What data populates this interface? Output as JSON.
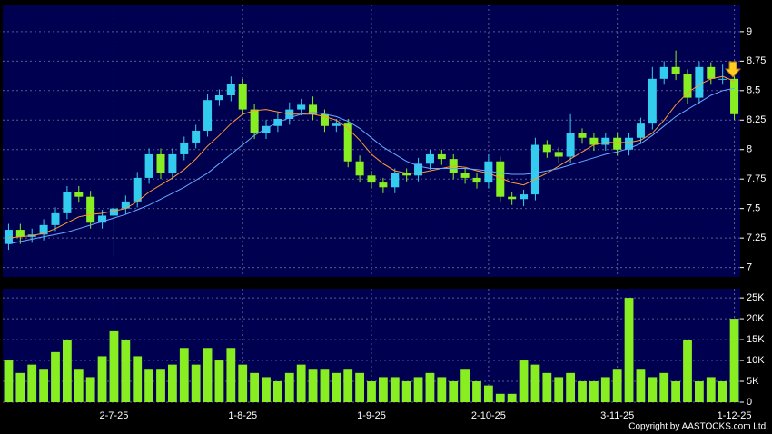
{
  "chart_data": [
    {
      "type": "candlestick",
      "categories": [
        null,
        null,
        null,
        null,
        null,
        null,
        null,
        null,
        null,
        "2-7-25",
        null,
        null,
        null,
        null,
        null,
        null,
        null,
        null,
        null,
        null,
        "1-8-25",
        null,
        null,
        null,
        null,
        null,
        null,
        null,
        null,
        null,
        null,
        "1-9-25",
        null,
        null,
        null,
        null,
        null,
        null,
        null,
        null,
        null,
        "2-10-25",
        null,
        null,
        null,
        null,
        null,
        null,
        null,
        null,
        null,
        null,
        "3-11-25",
        null,
        null,
        null,
        null,
        null,
        null,
        null,
        null,
        null,
        "1-12-25"
      ],
      "open": [
        7.2,
        7.32,
        7.26,
        7.28,
        7.36,
        7.46,
        7.64,
        7.6,
        7.38,
        7.44,
        7.5,
        7.56,
        7.76,
        7.96,
        7.8,
        7.96,
        8.06,
        8.16,
        8.42,
        8.46,
        8.56,
        8.34,
        8.14,
        8.2,
        8.26,
        8.34,
        8.38,
        8.3,
        8.2,
        8.22,
        7.9,
        7.78,
        7.72,
        7.68,
        7.8,
        7.78,
        7.88,
        7.96,
        7.92,
        7.8,
        7.76,
        7.72,
        7.9,
        7.6,
        7.58,
        7.62,
        8.04,
        7.98,
        7.94,
        8.14,
        8.1,
        8.04,
        8.1,
        8.0,
        8.1,
        8.22,
        8.6,
        8.7,
        8.64,
        8.44,
        8.7,
        8.6,
        8.6
      ],
      "high": [
        7.37,
        7.37,
        7.33,
        7.41,
        7.51,
        7.69,
        7.69,
        7.65,
        7.49,
        7.55,
        7.61,
        7.81,
        8.01,
        8.01,
        8.01,
        8.11,
        8.21,
        8.47,
        8.51,
        8.62,
        8.6,
        8.39,
        8.25,
        8.31,
        8.4,
        8.43,
        8.45,
        8.34,
        8.26,
        8.26,
        7.95,
        7.82,
        7.76,
        7.84,
        7.84,
        7.93,
        8.0,
        8.0,
        7.96,
        7.84,
        7.8,
        7.96,
        7.94,
        7.64,
        7.66,
        8.1,
        8.08,
        8.02,
        8.3,
        8.18,
        8.14,
        8.14,
        8.14,
        8.14,
        8.27,
        8.7,
        8.75,
        8.84,
        8.68,
        8.75,
        8.74,
        8.72,
        8.64
      ],
      "low": [
        7.15,
        7.2,
        7.21,
        7.23,
        7.31,
        7.41,
        7.55,
        7.33,
        7.33,
        7.1,
        7.45,
        7.51,
        7.71,
        7.75,
        7.75,
        7.91,
        8.01,
        8.11,
        8.37,
        8.41,
        8.29,
        8.09,
        8.09,
        8.15,
        8.21,
        8.29,
        8.25,
        8.15,
        8.15,
        7.85,
        7.72,
        7.67,
        7.63,
        7.63,
        7.73,
        7.73,
        7.83,
        7.87,
        7.75,
        7.71,
        7.67,
        7.67,
        7.55,
        7.53,
        7.52,
        7.57,
        7.93,
        7.89,
        7.89,
        8.05,
        7.99,
        7.99,
        7.95,
        7.95,
        8.05,
        8.17,
        8.55,
        8.59,
        8.39,
        8.39,
        8.55,
        8.55,
        8.25
      ],
      "close": [
        7.32,
        7.26,
        7.28,
        7.36,
        7.46,
        7.64,
        7.6,
        7.38,
        7.44,
        7.5,
        7.56,
        7.76,
        7.96,
        7.8,
        7.96,
        8.06,
        8.16,
        8.42,
        8.46,
        8.56,
        8.34,
        8.14,
        8.2,
        8.26,
        8.34,
        8.38,
        8.3,
        8.2,
        8.22,
        7.9,
        7.78,
        7.72,
        7.68,
        7.8,
        7.78,
        7.88,
        7.96,
        7.92,
        7.8,
        7.76,
        7.72,
        7.9,
        7.6,
        7.58,
        7.62,
        8.04,
        7.98,
        7.94,
        8.14,
        8.1,
        8.04,
        8.1,
        8.0,
        8.1,
        8.22,
        8.6,
        8.7,
        8.64,
        8.44,
        8.7,
        8.6,
        8.6,
        8.3
      ],
      "up_color": "#33ccee",
      "down_color": "#88ee22",
      "series": [
        {
          "color": "#ff9933",
          "values": [
            7.25,
            7.26,
            7.27,
            7.29,
            7.33,
            7.38,
            7.43,
            7.45,
            7.46,
            7.48,
            7.5,
            7.56,
            7.64,
            7.7,
            7.76,
            7.83,
            7.92,
            8.03,
            8.12,
            8.22,
            8.3,
            8.33,
            8.34,
            8.32,
            8.3,
            8.3,
            8.3,
            8.28,
            8.25,
            8.18,
            8.08,
            7.96,
            7.88,
            7.82,
            7.8,
            7.8,
            7.82,
            7.84,
            7.86,
            7.85,
            7.82,
            7.8,
            7.76,
            7.72,
            7.7,
            7.75,
            7.8,
            7.86,
            7.92,
            7.98,
            8.04,
            8.06,
            8.06,
            8.06,
            8.08,
            8.14,
            8.25,
            8.38,
            8.48,
            8.55,
            8.6,
            8.62,
            8.58
          ]
        },
        {
          "color": "#66aaff",
          "values": [
            7.2,
            7.22,
            7.24,
            7.26,
            7.28,
            7.3,
            7.33,
            7.36,
            7.39,
            7.42,
            7.45,
            7.49,
            7.53,
            7.58,
            7.63,
            7.68,
            7.74,
            7.8,
            7.88,
            7.96,
            8.04,
            8.12,
            8.18,
            8.23,
            8.27,
            8.3,
            8.32,
            8.3,
            8.28,
            8.24,
            8.18,
            8.1,
            8.02,
            7.96,
            7.9,
            7.86,
            7.84,
            7.84,
            7.84,
            7.84,
            7.83,
            7.82,
            7.8,
            7.79,
            7.79,
            7.8,
            7.82,
            7.84,
            7.87,
            7.9,
            7.93,
            7.96,
            7.98,
            8.01,
            8.05,
            8.12,
            8.2,
            8.28,
            8.34,
            8.4,
            8.46,
            8.5,
            8.52
          ]
        }
      ],
      "ylim": [
        6.92,
        9.23
      ],
      "yticks": [
        7,
        7.25,
        7.5,
        7.75,
        8,
        8.25,
        8.5,
        8.75,
        9
      ],
      "grid": true
    },
    {
      "type": "bar",
      "values": [
        10000,
        7000,
        9000,
        8000,
        12000,
        15000,
        8000,
        6000,
        11000,
        17000,
        15000,
        11000,
        8000,
        8000,
        9000,
        13000,
        9000,
        13000,
        10000,
        13000,
        9000,
        7000,
        6000,
        5000,
        7000,
        9000,
        8000,
        8000,
        7000,
        8000,
        7000,
        5000,
        6000,
        6000,
        5000,
        6000,
        7000,
        6000,
        5000,
        8000,
        5000,
        4000,
        2000,
        2000,
        10000,
        9000,
        7000,
        6000,
        7000,
        5000,
        5000,
        6000,
        8000,
        25000,
        8000,
        6000,
        7000,
        5000,
        15000,
        5000,
        6000,
        5000,
        20000
      ],
      "color": "#88ee22",
      "ylim": [
        0,
        27200
      ],
      "yticks": [
        0,
        {
          "value": 5000,
          "label": "5K"
        },
        {
          "value": 10000,
          "label": "10K"
        },
        {
          "value": 15000,
          "label": "15K"
        },
        {
          "value": 20000,
          "label": "20K"
        },
        {
          "value": 25000,
          "label": "25K"
        }
      ],
      "grid": true
    }
  ],
  "footer": "Copyright by AASTOCKS.com Ltd."
}
